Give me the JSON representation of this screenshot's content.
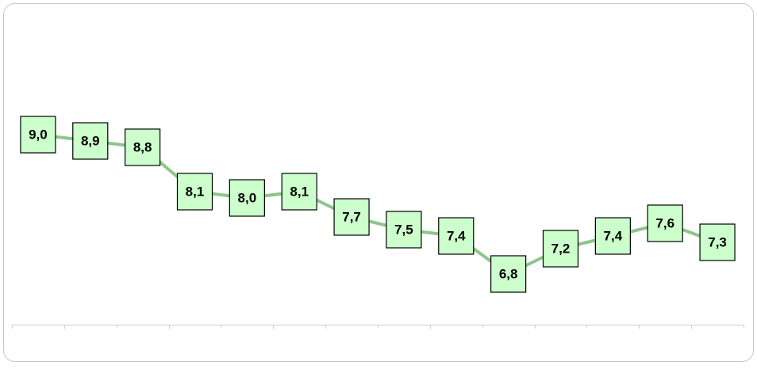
{
  "chart_data": {
    "type": "line",
    "categories": [
      null,
      null,
      null,
      null,
      null,
      null,
      null,
      null,
      null,
      null,
      null,
      null,
      null,
      null
    ],
    "values": [
      9.0,
      8.9,
      8.8,
      8.1,
      8.0,
      8.1,
      7.7,
      7.5,
      7.4,
      6.8,
      7.2,
      7.4,
      7.6,
      7.3
    ],
    "value_labels": [
      "9,0",
      "8,9",
      "8,8",
      "8,1",
      "8,0",
      "8,1",
      "7,7",
      "7,5",
      "7,4",
      "6,8",
      "7,2",
      "7,4",
      "7,6",
      "7,3"
    ],
    "color": "#8cc68c",
    "ylim": [
      6,
      11
    ]
  }
}
